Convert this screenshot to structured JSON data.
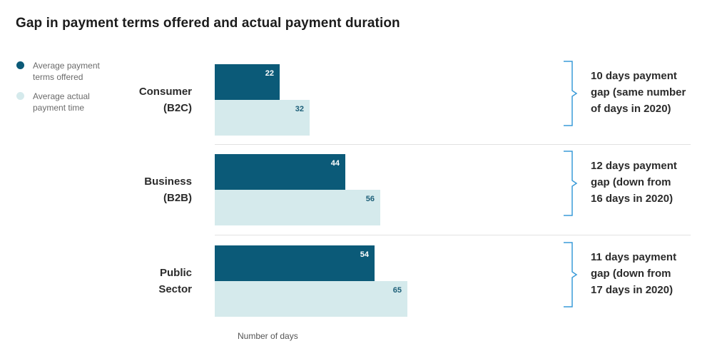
{
  "chart_data": {
    "type": "bar",
    "orientation": "horizontal",
    "title": "Gap in payment terms offered and actual payment duration",
    "xlabel": "Number of days",
    "ylabel": "",
    "categories": [
      "Consumer\n(B2C)",
      "Business\n(B2B)",
      "Public\nSector"
    ],
    "series": [
      {
        "name": "Average payment terms offered",
        "values": [
          22,
          44,
          54
        ],
        "color": "#0b5a78",
        "value_color": "#ffffff"
      },
      {
        "name": "Average actual payment time",
        "values": [
          32,
          56,
          65
        ],
        "color": "#d5eaec",
        "value_color": "#1d5f78"
      }
    ],
    "xlim": [
      0,
      65
    ],
    "legend_position": "top-left",
    "annotations": [
      "10 days payment\ngap (same number\nof days in 2020)",
      "12 days payment\ngap (down from\n16 days in 2020)",
      "11 days payment\ngap (down from\n17 days in 2020)"
    ],
    "grid": false
  },
  "colors": {
    "bracket": "#3a9bd9"
  }
}
